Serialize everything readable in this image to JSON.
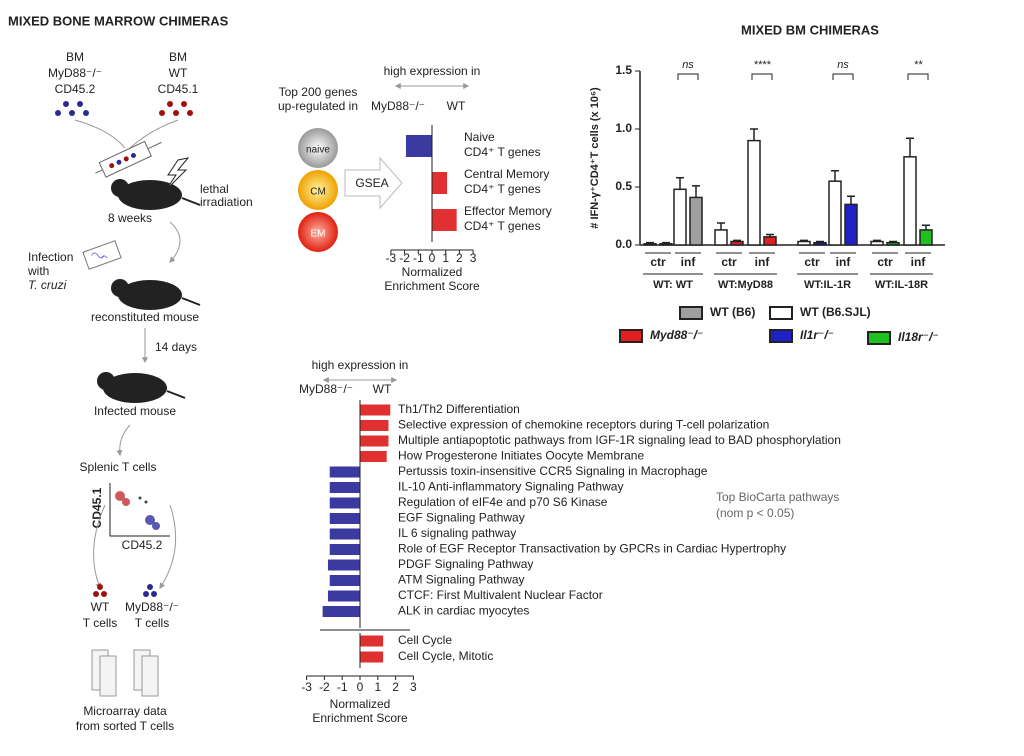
{
  "figure": {
    "left_title": "MIXED BONE MARROW CHIMERAS",
    "bm_myd88": [
      "BM",
      "MyD88⁻/⁻",
      "CD45.2"
    ],
    "bm_wt": [
      "BM",
      "WT",
      "CD45.1"
    ],
    "irradiation": [
      "lethal",
      "irradiation"
    ],
    "weeks": "8 weeks",
    "infection": [
      "Infection",
      "with",
      "T. cruzi"
    ],
    "reconstituted": "reconstituted mouse",
    "days": "14 days",
    "infected": "Infected mouse",
    "splenic": "Splenic T cells",
    "cd451": "CD45.1",
    "cd452": "CD45.2",
    "wt_cells": [
      "WT",
      "T cells"
    ],
    "ko_cells": [
      "MyD88⁻/⁻",
      "T cells"
    ],
    "microarray": [
      "Microarray data",
      "from sorted T cells"
    ],
    "top_genes": [
      "Top 200 genes",
      "up-regulated in"
    ],
    "circles": [
      "naive",
      "CM",
      "EM"
    ],
    "gsea": "GSEA"
  },
  "chart_data": [
    {
      "type": "hbar",
      "header": "high expression in",
      "left_label": "MyD88⁻/⁻",
      "right_label": "WT",
      "categories": [
        [
          "Naive",
          "CD4⁺ T genes"
        ],
        [
          "Central Memory",
          "CD4⁺ T genes"
        ],
        [
          "Effector Memory",
          "CD4⁺ T genes"
        ]
      ],
      "values": [
        -1.9,
        1.1,
        1.8
      ],
      "colors": [
        "#3a3aa0",
        "#e03030",
        "#e03030"
      ],
      "xlim": [
        -3,
        3
      ],
      "xticks": [
        -3,
        -2,
        -1,
        0,
        1,
        2,
        3
      ],
      "xlabel": [
        "Normalized",
        "Enrichment Score"
      ]
    },
    {
      "type": "hbar",
      "header": "high expression in",
      "left_label": "MyD88⁻/⁻",
      "right_label": "WT",
      "categories": [
        "Th1/Th2 Differentiation",
        "Selective expression of chemokine receptors during T-cell polarization",
        "Multiple antiapoptotic pathways from IGF-1R signaling lead to BAD phosphorylation",
        "How Progesterone Initiates Oocyte Membrane",
        "Pertussis toxin-insensitive CCR5 Signaling in Macrophage",
        "IL-10 Anti-inflammatory Signaling Pathway",
        "Regulation of eIF4e and p70 S6 Kinase",
        "EGF Signaling Pathway",
        "IL 6 signaling pathway",
        "Role of EGF Receptor Transactivation by GPCRs in Cardiac Hypertrophy",
        "PDGF Signaling Pathway",
        "ATM Signaling Pathway",
        "CTCF: First Multivalent Nuclear Factor",
        "ALK in cardiac myocytes",
        "Cell Cycle",
        "Cell Cycle, Mitotic"
      ],
      "values": [
        1.7,
        1.6,
        1.6,
        1.5,
        -1.7,
        -1.7,
        -1.7,
        -1.7,
        -1.7,
        -1.7,
        -1.8,
        -1.7,
        -1.8,
        -2.1,
        1.3,
        1.3
      ],
      "colors": [
        "#e03030",
        "#e03030",
        "#e03030",
        "#e03030",
        "#3a3aa0",
        "#3a3aa0",
        "#3a3aa0",
        "#3a3aa0",
        "#3a3aa0",
        "#3a3aa0",
        "#3a3aa0",
        "#3a3aa0",
        "#3a3aa0",
        "#3a3aa0",
        "#e03030",
        "#e03030"
      ],
      "xlim": [
        -3,
        3
      ],
      "xticks": [
        -3,
        -2,
        -1,
        0,
        1,
        2,
        3
      ],
      "xlabel": [
        "Normalized",
        "Enrichment Score"
      ],
      "annotation": [
        "Top BioCarta pathways",
        "(nom p < 0.05)"
      ]
    },
    {
      "type": "groupbar",
      "title": "MIXED BM CHIMERAS",
      "ylabel": "# IFN-γ⁺CD4⁺T cells (x 10⁶)",
      "categories": [
        "ctr",
        "inf",
        "ctr",
        "inf",
        "ctr",
        "inf",
        "ctr",
        "inf"
      ],
      "groups": [
        "WT: WT",
        "WT:MyD88",
        "WT:IL-1R",
        "WT:IL-18R"
      ],
      "significance": [
        "ns",
        "****",
        "ns",
        "**"
      ],
      "ylim": [
        0,
        1.5
      ],
      "yticks": [
        {
          "value": 0,
          "label": "0.0"
        },
        0.5,
        {
          "value": 1,
          "label": "1.0"
        },
        1.5
      ],
      "series": [
        {
          "name": "WT (B6)",
          "color": "#a0a0a0",
          "values": [
            0.01,
            0.41,
            null,
            null,
            null,
            null,
            null,
            null
          ],
          "errors": [
            0.01,
            0.1,
            null,
            null,
            null,
            null,
            null,
            null
          ]
        },
        {
          "name": "WT (B6.SJL)",
          "color": "#ffffff",
          "values": [
            0.01,
            0.48,
            0.13,
            0.9,
            0.03,
            0.55,
            0.03,
            0.76
          ],
          "errors": [
            0.01,
            0.1,
            0.06,
            0.1,
            0.01,
            0.09,
            0.01,
            0.16
          ]
        },
        {
          "name": "Myd88⁻/⁻",
          "color": "#e02020",
          "values": [
            null,
            null,
            0.03,
            0.07,
            null,
            null,
            null,
            null
          ],
          "errors": [
            null,
            null,
            0.01,
            0.02,
            null,
            null,
            null,
            null
          ]
        },
        {
          "name": "Il1r⁻/⁻",
          "color": "#2020c8",
          "values": [
            null,
            null,
            null,
            null,
            0.02,
            0.35,
            null,
            null
          ],
          "errors": [
            null,
            null,
            null,
            null,
            0.01,
            0.07,
            null,
            null
          ]
        },
        {
          "name": "Il18r⁻/⁻",
          "color": "#20c020",
          "values": [
            null,
            null,
            null,
            null,
            null,
            null,
            0.02,
            0.13
          ],
          "errors": [
            null,
            null,
            null,
            null,
            null,
            null,
            0.01,
            0.04
          ]
        }
      ]
    }
  ]
}
